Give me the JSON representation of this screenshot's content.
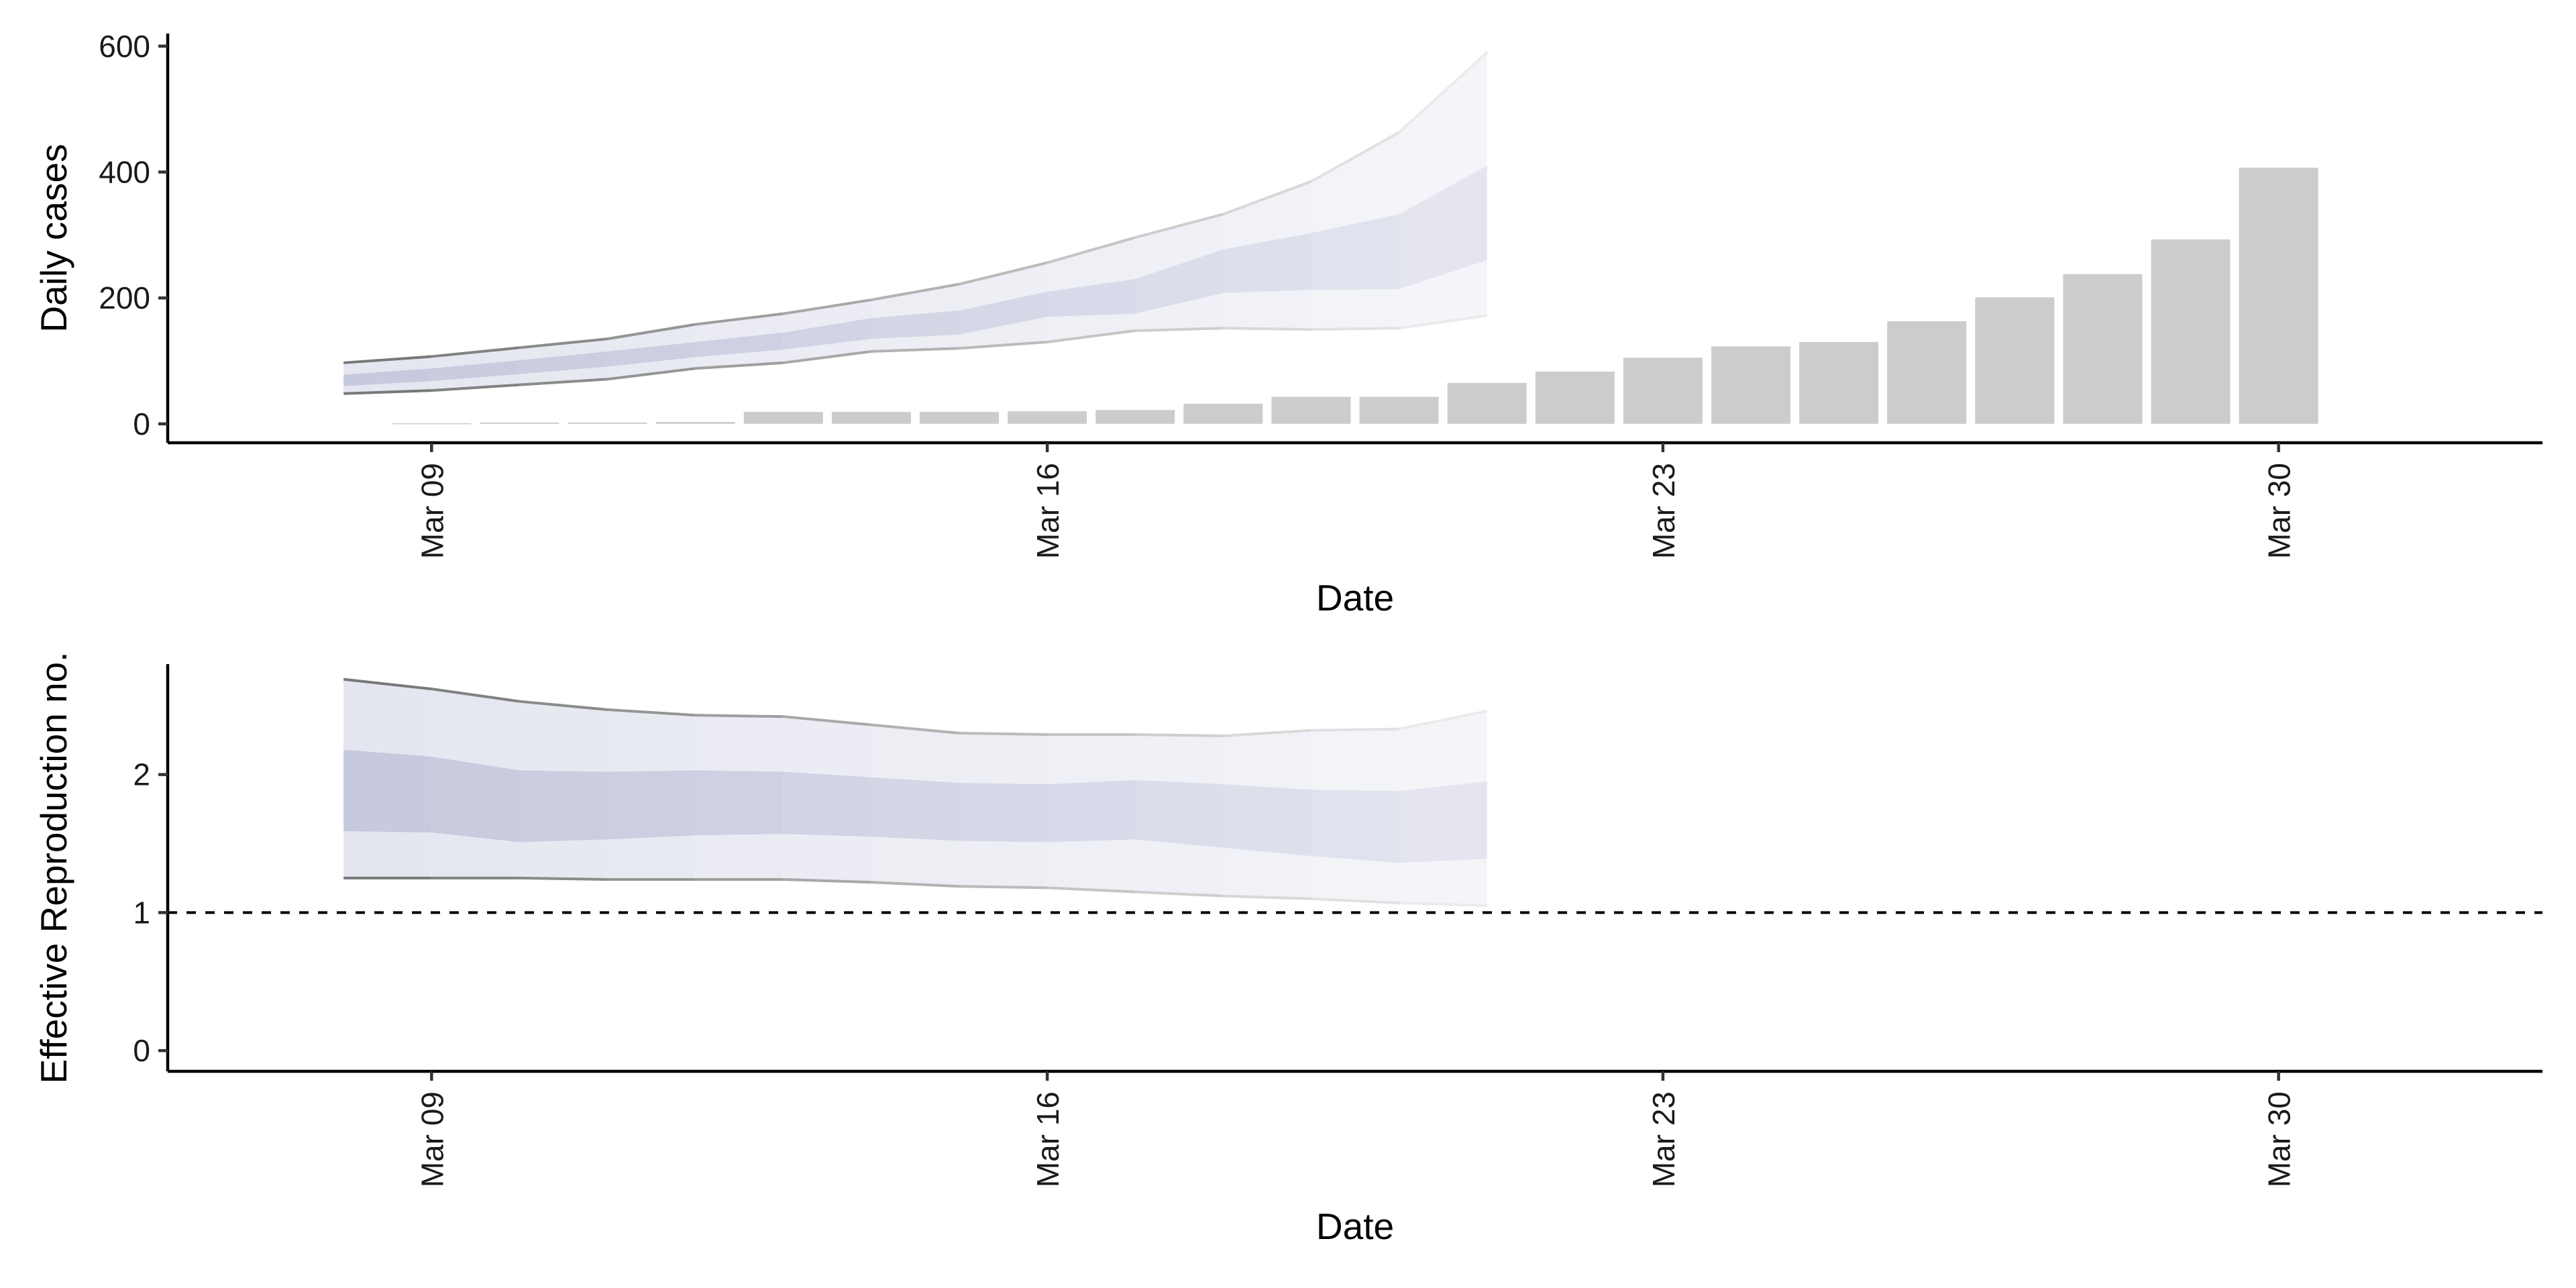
{
  "chart_data": [
    {
      "type": "bar",
      "panel": "top",
      "ylabel": "Daily cases",
      "xlabel": "Date",
      "yticks": [
        0,
        200,
        400,
        600
      ],
      "ylim": [
        -30,
        620
      ],
      "xticks": [
        {
          "date": "2020-03-09",
          "label": "Mar 09"
        },
        {
          "date": "2020-03-16",
          "label": "Mar 16"
        },
        {
          "date": "2020-03-23",
          "label": "Mar 23"
        },
        {
          "date": "2020-03-30",
          "label": "Mar 30"
        }
      ],
      "xlim": [
        "2020-03-06",
        "2020-04-02"
      ],
      "bar_color": "#cccccc",
      "bars": {
        "dates": [
          "2020-03-09",
          "2020-03-10",
          "2020-03-11",
          "2020-03-12",
          "2020-03-13",
          "2020-03-14",
          "2020-03-15",
          "2020-03-16",
          "2020-03-17",
          "2020-03-18",
          "2020-03-19",
          "2020-03-20",
          "2020-03-21",
          "2020-03-22",
          "2020-03-23",
          "2020-03-24",
          "2020-03-25",
          "2020-03-26",
          "2020-03-27",
          "2020-03-28",
          "2020-03-29",
          "2020-03-30"
        ],
        "values": [
          1,
          2,
          2,
          3,
          19,
          19,
          19,
          20,
          22,
          32,
          43,
          43,
          65,
          83,
          105,
          123,
          130,
          163,
          201,
          238,
          293,
          407
        ]
      },
      "estimate_bands": {
        "dates": [
          "2020-03-08",
          "2020-03-09",
          "2020-03-10",
          "2020-03-11",
          "2020-03-12",
          "2020-03-13",
          "2020-03-14",
          "2020-03-15",
          "2020-03-16",
          "2020-03-17",
          "2020-03-18",
          "2020-03-19",
          "2020-03-20",
          "2020-03-21"
        ],
        "outer_lower": [
          48,
          53,
          62,
          71,
          88,
          97,
          115,
          120,
          130,
          148,
          152,
          150,
          152,
          172
        ],
        "outer_upper": [
          97,
          107,
          121,
          135,
          158,
          175,
          197,
          222,
          256,
          296,
          333,
          385,
          463,
          590
        ],
        "inner_lower": [
          60,
          68,
          79,
          91,
          106,
          118,
          135,
          142,
          170,
          175,
          208,
          213,
          214,
          260
        ],
        "inner_upper": [
          78,
          88,
          101,
          115,
          130,
          145,
          168,
          180,
          210,
          230,
          277,
          303,
          333,
          410
        ]
      }
    },
    {
      "type": "area",
      "panel": "bottom",
      "ylabel": "Effective Reproduction no.",
      "xlabel": "Date",
      "yticks": [
        0,
        1,
        2
      ],
      "ylim": [
        -0.15,
        2.8
      ],
      "xticks": [
        {
          "date": "2020-03-09",
          "label": "Mar 09"
        },
        {
          "date": "2020-03-16",
          "label": "Mar 16"
        },
        {
          "date": "2020-03-23",
          "label": "Mar 23"
        },
        {
          "date": "2020-03-30",
          "label": "Mar 30"
        }
      ],
      "xlim": [
        "2020-03-06",
        "2020-04-02"
      ],
      "reference_line": 1,
      "estimate_bands": {
        "dates": [
          "2020-03-08",
          "2020-03-09",
          "2020-03-10",
          "2020-03-11",
          "2020-03-12",
          "2020-03-13",
          "2020-03-14",
          "2020-03-15",
          "2020-03-16",
          "2020-03-17",
          "2020-03-18",
          "2020-03-19",
          "2020-03-20",
          "2020-03-21"
        ],
        "outer_lower": [
          1.25,
          1.25,
          1.25,
          1.24,
          1.24,
          1.24,
          1.22,
          1.19,
          1.18,
          1.15,
          1.12,
          1.1,
          1.07,
          1.05
        ],
        "outer_upper": [
          2.69,
          2.62,
          2.53,
          2.47,
          2.43,
          2.42,
          2.36,
          2.3,
          2.29,
          2.29,
          2.28,
          2.32,
          2.33,
          2.46
        ],
        "inner_lower": [
          1.59,
          1.58,
          1.51,
          1.53,
          1.56,
          1.57,
          1.55,
          1.52,
          1.51,
          1.53,
          1.47,
          1.41,
          1.36,
          1.39
        ],
        "inner_upper": [
          2.18,
          2.13,
          2.03,
          2.02,
          2.03,
          2.02,
          1.98,
          1.94,
          1.93,
          1.96,
          1.93,
          1.89,
          1.88,
          1.95
        ]
      }
    }
  ]
}
